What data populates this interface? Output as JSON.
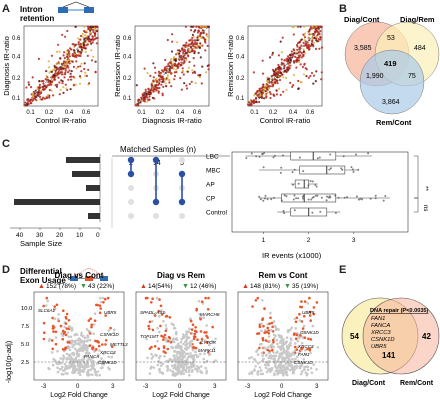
{
  "panels": {
    "a": "A",
    "b": "B",
    "c": "C",
    "d": "D",
    "e": "E"
  },
  "intron_label": "Intron\nretention",
  "scatter": {
    "x_ticks": [
      "0.1",
      "0.2",
      "0.4",
      "0.6"
    ],
    "y_ticks": [
      "0.1",
      "0.2",
      "0.4",
      "0.6"
    ],
    "plots": [
      {
        "xlabel": "Control IR-ratio",
        "ylabel": "Diagnosis IR-ratio"
      },
      {
        "xlabel": "Diagnosis IR-ratio",
        "ylabel": "Remission IR-ratio"
      },
      {
        "xlabel": "Control IR-ratio",
        "ylabel": "Remission IR-ratio"
      }
    ]
  },
  "venn3": {
    "labels": [
      "Diag/Cont",
      "Diag/Rem",
      "Rem/Cont"
    ],
    "counts": {
      "a_only": "3,585",
      "ab": "53",
      "b_only": "484",
      "ac": "1,990",
      "abc": "419",
      "bc": "75",
      "c_only": "3,864"
    }
  },
  "panel_c": {
    "title": "Matched Samples (n)",
    "matched_counts": [
      "2",
      "14",
      "5"
    ],
    "groups": [
      "LBC",
      "MBC",
      "AP",
      "CP",
      "Control"
    ],
    "bar_axis_ticks": [
      "40",
      "30",
      "20",
      "10",
      "0"
    ],
    "bar_axis_label": "Sample Size",
    "box_axis_ticks": [
      "1",
      "2",
      "3"
    ],
    "box_axis_label": "IR events (x1000)",
    "sig_labels": [
      "**",
      "ns"
    ]
  },
  "chart_data": {
    "type": "bar",
    "categories": [
      "LBC",
      "MBC",
      "AP",
      "CP",
      "Control"
    ],
    "values": [
      17,
      14,
      7,
      43,
      6
    ],
    "xlabel": "Sample Size",
    "xlim": [
      0,
      45
    ]
  },
  "panel_d": {
    "title": "Differential\nExon Usage",
    "ylabel": "-log10(p-adj)",
    "xlabel": "Log2 Fold Change",
    "y_ticks": [
      "2.5",
      "5.0",
      "7.5",
      "10.0"
    ],
    "x_ticks": [
      "-3",
      "0",
      "3"
    ],
    "plots": [
      {
        "title": "Diag vs Cont",
        "up": "152 (78%)",
        "down": "43 (22%)",
        "genes": [
          "SLC6A1",
          "UBR5",
          "CSNK1D",
          "METTL3",
          "XRCC3",
          "FANCA",
          "CSNK1D"
        ]
      },
      {
        "title": "Diag vs Rem",
        "up": "14(54%)",
        "down": "12 (46%)",
        "genes": [
          "SPADL-AS1",
          "MARCH8",
          "TOP1MT",
          "CYTOR",
          "MAPK11"
        ]
      },
      {
        "title": "Rem vs Cont",
        "up": "148 (81%)",
        "down": "35 (19%)",
        "genes": [
          "UBR5",
          "CSNK1D",
          "XRCC3",
          "FAN1",
          "CSNK1D"
        ]
      }
    ]
  },
  "venn2": {
    "header": "DNA repair (P<0.0035)",
    "genes": [
      "FAN1",
      "FANCA",
      "XRCC3",
      "CSNK1D",
      "UBR5"
    ],
    "left": "54",
    "center": "141",
    "right": "42",
    "label_left": "Diag/Cont",
    "label_right": "Rem/Cont"
  },
  "colors": {
    "point": "#b3261e",
    "point_light": "#f2a07a",
    "grey": "#c8c8c8",
    "venn_a": "#f6b39a",
    "venn_b": "#fbefb8",
    "venn_c": "#a9cbe8",
    "line": "#2b4fa2",
    "bar": "#333333"
  }
}
